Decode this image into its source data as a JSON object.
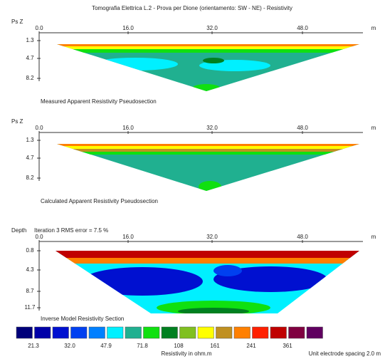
{
  "title": "Tomografia Elettrica L.2 - Prova per Dione (orientamento: SW - NE) - Resistivity",
  "panels": [
    {
      "axis_label": "Ps Z",
      "x_ticks": [
        "0.0",
        "16.0",
        "32.0",
        "48.0"
      ],
      "x_unit": "m",
      "depth_ticks": [
        "1.3",
        "4.7",
        "8.2"
      ],
      "caption": "Measured Apparent Resistivity Pseudosection"
    },
    {
      "axis_label": "Ps Z",
      "x_ticks": [
        "0.0",
        "16.0",
        "32.0",
        "48.0"
      ],
      "x_unit": "m",
      "depth_ticks": [
        "1.3",
        "4.7",
        "8.2"
      ],
      "caption": "Calculated Apparent Resistivity Pseudosection"
    },
    {
      "axis_label": "Depth",
      "info": "Iteration 3 RMS error = 7.5 %",
      "x_ticks": [
        "0.0",
        "16.0",
        "32.0",
        "48.0"
      ],
      "x_unit": "m",
      "depth_ticks": [
        "0.8",
        "4.3",
        "8.7",
        "11.7"
      ],
      "caption": "Inverse Model Resistivity Section"
    }
  ],
  "legend": {
    "colors": [
      "#00007a",
      "#0000a8",
      "#0010d0",
      "#0040f0",
      "#0080ff",
      "#00f0ff",
      "#20b090",
      "#10e010",
      "#008020",
      "#80c020",
      "#ffff00",
      "#c09020",
      "#ff8000",
      "#ff2000",
      "#c00000",
      "#800040",
      "#600060"
    ],
    "labels": [
      "21.3",
      "32.0",
      "47.9",
      "71.8",
      "108",
      "161",
      "241",
      "361"
    ]
  },
  "legend_title": "Resistivity in ohm.m",
  "footnote": "Unit electrode spacing 2.0 m"
}
